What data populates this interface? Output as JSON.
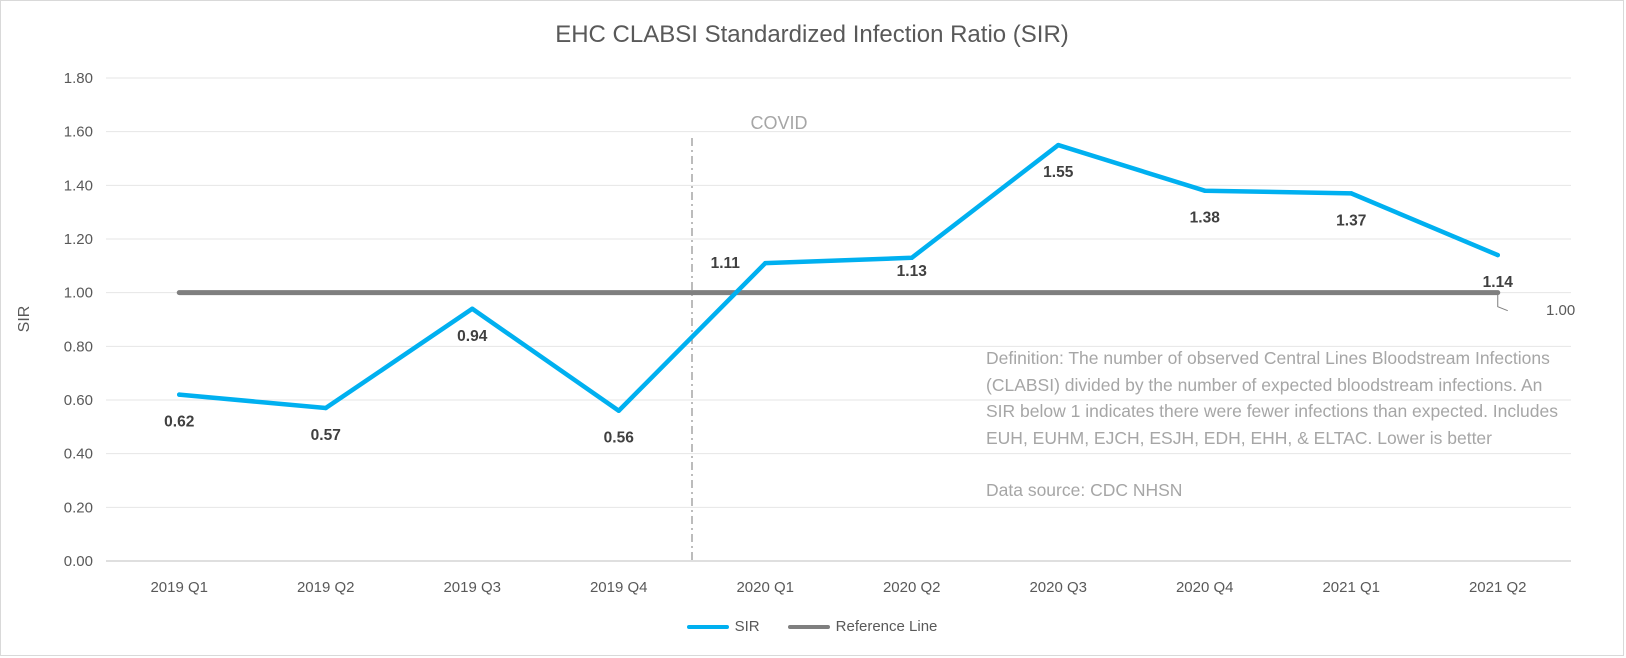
{
  "chart_data": {
    "type": "line",
    "title": "EHC CLABSI Standardized Infection Ratio (SIR)",
    "xlabel": "",
    "ylabel": "SIR",
    "categories": [
      "2019 Q1",
      "2019 Q2",
      "2019 Q3",
      "2019 Q4",
      "2020 Q1",
      "2020 Q2",
      "2020 Q3",
      "2020 Q4",
      "2021 Q1",
      "2021 Q2"
    ],
    "ylim": [
      0,
      1.8
    ],
    "yticks": [
      "0.00",
      "0.20",
      "0.40",
      "0.60",
      "0.80",
      "1.00",
      "1.20",
      "1.40",
      "1.60",
      "1.80"
    ],
    "grid": true,
    "legend_position": "bottom",
    "series": [
      {
        "name": "SIR",
        "color": "#00b0f0",
        "values": [
          0.62,
          0.57,
          0.94,
          0.56,
          1.11,
          1.13,
          1.55,
          1.38,
          1.37,
          1.14
        ],
        "data_labels": [
          "0.62",
          "0.57",
          "0.94",
          "0.56",
          "1.11",
          "1.13",
          "1.55",
          "1.38",
          "1.37",
          "1.14"
        ]
      },
      {
        "name": "Reference Line",
        "color": "#7f7f7f",
        "values": [
          1.0,
          1.0,
          1.0,
          1.0,
          1.0,
          1.0,
          1.0,
          1.0,
          1.0,
          1.0
        ],
        "end_label": "1.00"
      }
    ],
    "annotations": {
      "event_label": "COVID",
      "event_category": "2020 Q1",
      "definition": "Definition: The number of observed Central Lines Bloodstream Infections (CLABSI) divided by the number of expected bloodstream infections. An SIR below 1 indicates there were fewer infections than expected. Includes EUH, EUHM, EJCH, ESJH, EDH, EHH, & ELTAC. Lower is better",
      "source": "Data source: CDC NHSN"
    }
  }
}
